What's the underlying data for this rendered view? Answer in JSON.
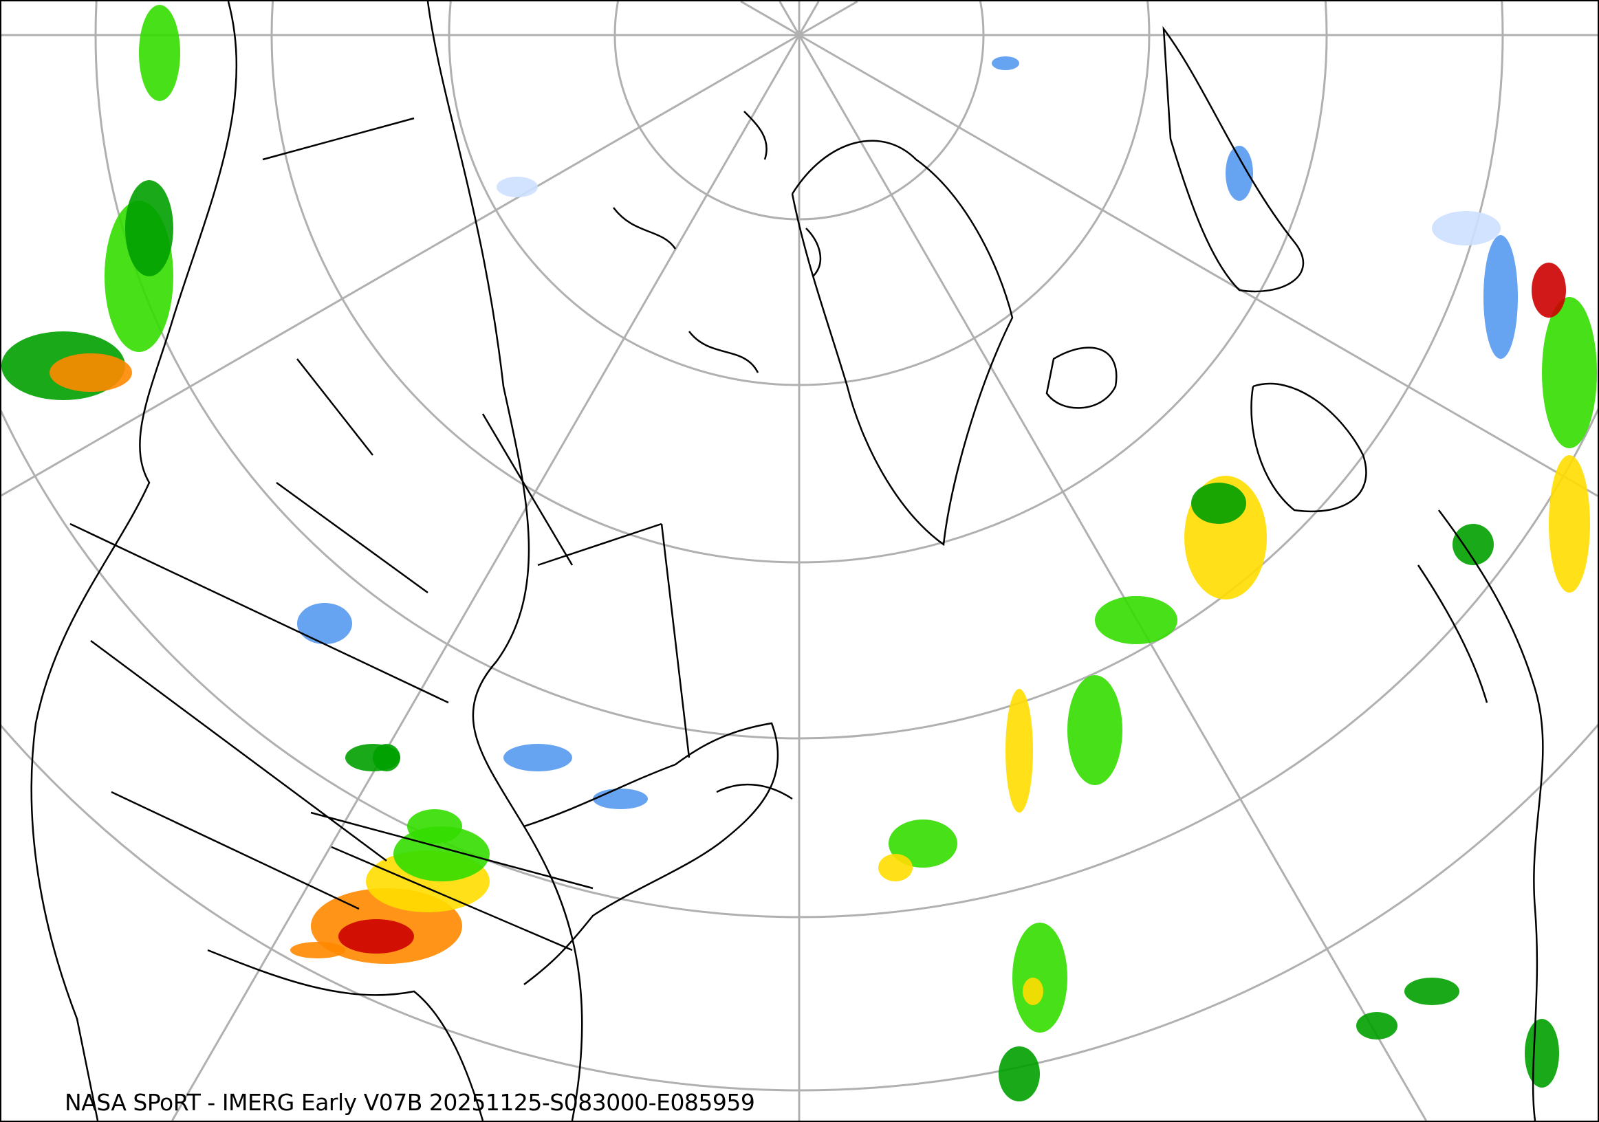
{
  "caption": "NASA SPoRT - IMERG Early V07B 20251125-S083000-E085959",
  "map": {
    "projection": "north polar stereographic",
    "features": [
      "coastlines",
      "country borders",
      "US state / Canadian province borders",
      "latitude/longitude graticule"
    ],
    "colors": {
      "background": "#ffffff",
      "coastline": "#000000",
      "graticule": "#b0b0b0",
      "rain_light": "#00a000",
      "rain_moderate": "#33dd00",
      "rain_heavy": "#ffdd00",
      "rain_very_heavy": "#ff8800",
      "rain_extreme": "#cc0000",
      "snow_light": "#cce0ff",
      "snow_moderate": "#5599ee",
      "snow_heavy": "#1155cc",
      "mixed": "#ff66cc"
    }
  }
}
